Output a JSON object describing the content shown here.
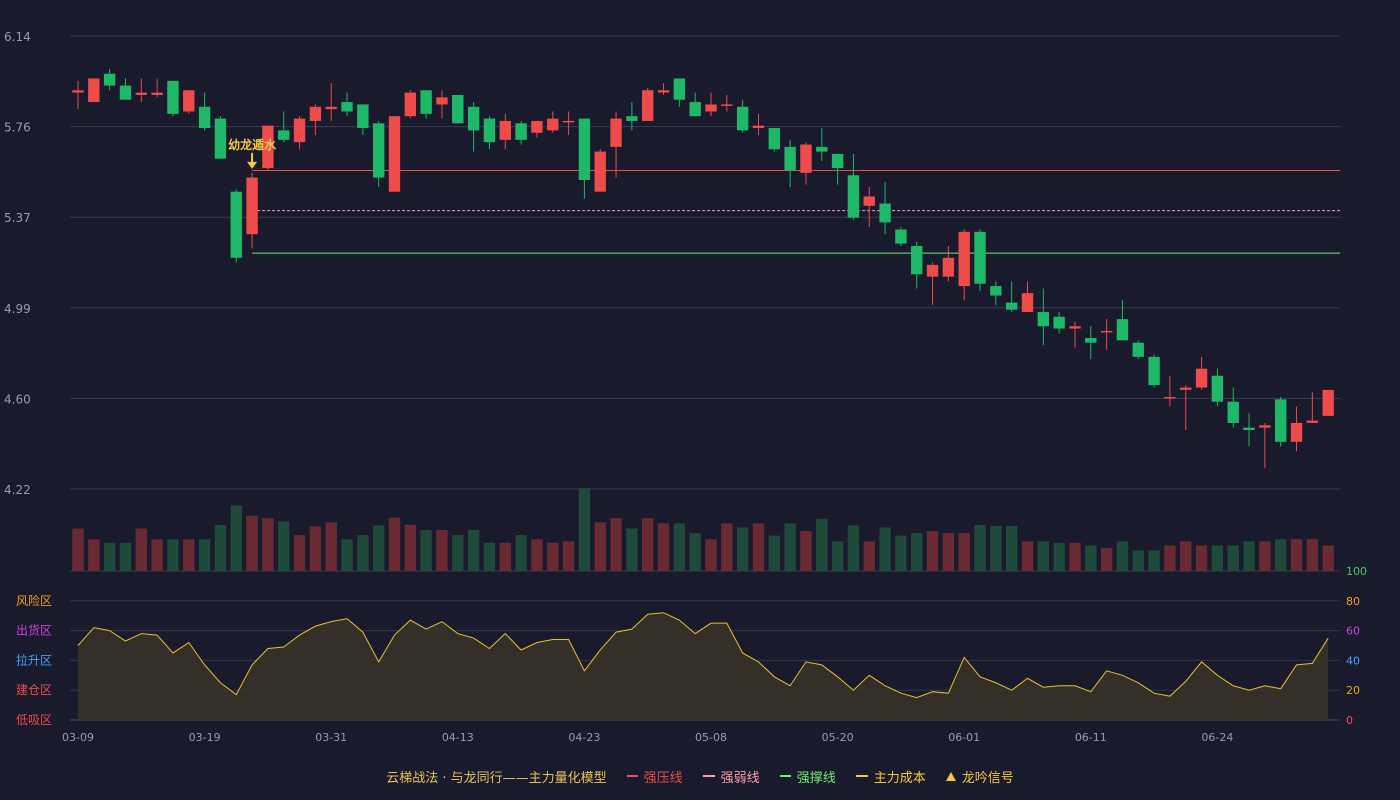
{
  "chart_data": {
    "type": "candlestick",
    "price_axis": {
      "ticks": [
        "6.14",
        "5.76",
        "5.37",
        "4.99",
        "4.60",
        "4.22"
      ],
      "range": [
        4.22,
        6.14
      ]
    },
    "x_labels": [
      "03-09",
      "03-19",
      "03-31",
      "04-13",
      "04-23",
      "05-08",
      "05-20",
      "06-01",
      "06-11",
      "06-24"
    ],
    "x_label_indices": [
      0,
      8,
      16,
      24,
      32,
      40,
      48,
      56,
      64,
      72
    ],
    "candles": [
      [
        5.9,
        5.91,
        5.83,
        5.95
      ],
      [
        5.86,
        5.96,
        5.87,
        5.96
      ],
      [
        5.98,
        5.93,
        5.91,
        6.0
      ],
      [
        5.93,
        5.87,
        5.87,
        5.96
      ],
      [
        5.89,
        5.9,
        5.86,
        5.96
      ],
      [
        5.89,
        5.9,
        5.88,
        5.96
      ],
      [
        5.95,
        5.81,
        5.8,
        5.95
      ],
      [
        5.82,
        5.91,
        5.81,
        5.91
      ],
      [
        5.84,
        5.75,
        5.74,
        5.9
      ],
      [
        5.79,
        5.62,
        5.62,
        5.8
      ],
      [
        5.48,
        5.2,
        5.18,
        5.49
      ],
      [
        5.3,
        5.54,
        5.24,
        5.56
      ],
      [
        5.58,
        5.76,
        5.57,
        5.76
      ],
      [
        5.74,
        5.7,
        5.69,
        5.82
      ],
      [
        5.69,
        5.79,
        5.66,
        5.8
      ],
      [
        5.78,
        5.84,
        5.72,
        5.85
      ],
      [
        5.83,
        5.84,
        5.78,
        5.94
      ],
      [
        5.86,
        5.82,
        5.8,
        5.9
      ],
      [
        5.85,
        5.75,
        5.72,
        5.85
      ],
      [
        5.77,
        5.54,
        5.5,
        5.78
      ],
      [
        5.48,
        5.8,
        5.48,
        5.8
      ],
      [
        5.8,
        5.9,
        5.79,
        5.91
      ],
      [
        5.91,
        5.81,
        5.79,
        5.91
      ],
      [
        5.85,
        5.88,
        5.79,
        5.91
      ],
      [
        5.89,
        5.77,
        5.77,
        5.89
      ],
      [
        5.84,
        5.74,
        5.65,
        5.86
      ],
      [
        5.79,
        5.69,
        5.66,
        5.8
      ],
      [
        5.7,
        5.78,
        5.66,
        5.81
      ],
      [
        5.77,
        5.7,
        5.68,
        5.78
      ],
      [
        5.73,
        5.78,
        5.71,
        5.78
      ],
      [
        5.74,
        5.79,
        5.73,
        5.82
      ],
      [
        5.78,
        5.78,
        5.72,
        5.82
      ],
      [
        5.79,
        5.53,
        5.45,
        5.79
      ],
      [
        5.48,
        5.65,
        5.48,
        5.66
      ],
      [
        5.67,
        5.79,
        5.54,
        5.82
      ],
      [
        5.8,
        5.78,
        5.74,
        5.86
      ],
      [
        5.78,
        5.91,
        5.78,
        5.92
      ],
      [
        5.9,
        5.91,
        5.89,
        5.94
      ],
      [
        5.96,
        5.87,
        5.84,
        5.96
      ],
      [
        5.86,
        5.8,
        5.8,
        5.9
      ],
      [
        5.82,
        5.85,
        5.8,
        5.9
      ],
      [
        5.85,
        5.85,
        5.82,
        5.89
      ],
      [
        5.84,
        5.74,
        5.73,
        5.87
      ],
      [
        5.75,
        5.76,
        5.72,
        5.81
      ],
      [
        5.75,
        5.66,
        5.65,
        5.75
      ],
      [
        5.67,
        5.57,
        5.5,
        5.7
      ],
      [
        5.56,
        5.68,
        5.51,
        5.69
      ],
      [
        5.67,
        5.65,
        5.61,
        5.75
      ],
      [
        5.64,
        5.58,
        5.51,
        5.64
      ],
      [
        5.55,
        5.37,
        5.36,
        5.64
      ],
      [
        5.42,
        5.46,
        5.33,
        5.5
      ],
      [
        5.43,
        5.35,
        5.3,
        5.52
      ],
      [
        5.32,
        5.26,
        5.25,
        5.33
      ],
      [
        5.25,
        5.13,
        5.07,
        5.27
      ],
      [
        5.12,
        5.17,
        5.0,
        5.18
      ],
      [
        5.12,
        5.2,
        5.1,
        5.25
      ],
      [
        5.08,
        5.31,
        5.02,
        5.32
      ],
      [
        5.31,
        5.09,
        5.06,
        5.32
      ],
      [
        5.08,
        5.04,
        5.0,
        5.1
      ],
      [
        5.01,
        4.98,
        4.97,
        5.1
      ],
      [
        4.97,
        5.05,
        4.97,
        5.1
      ],
      [
        4.97,
        4.91,
        4.83,
        5.07
      ],
      [
        4.95,
        4.9,
        4.88,
        4.97
      ],
      [
        4.9,
        4.91,
        4.82,
        4.93
      ],
      [
        4.86,
        4.84,
        4.77,
        4.91
      ],
      [
        4.89,
        4.89,
        4.81,
        4.94
      ],
      [
        4.94,
        4.85,
        4.85,
        5.02
      ],
      [
        4.84,
        4.78,
        4.77,
        4.85
      ],
      [
        4.78,
        4.66,
        4.65,
        4.79
      ],
      [
        4.61,
        4.61,
        4.57,
        4.7
      ],
      [
        4.64,
        4.65,
        4.47,
        4.66
      ],
      [
        4.65,
        4.73,
        4.64,
        4.78
      ],
      [
        4.7,
        4.59,
        4.57,
        4.73
      ],
      [
        4.59,
        4.5,
        4.48,
        4.65
      ],
      [
        4.48,
        4.47,
        4.4,
        4.54
      ],
      [
        4.48,
        4.49,
        4.31,
        4.5
      ],
      [
        4.6,
        4.42,
        4.4,
        4.61
      ],
      [
        4.42,
        4.5,
        4.38,
        4.57
      ],
      [
        4.5,
        4.51,
        4.5,
        4.63
      ],
      [
        4.53,
        4.64,
        4.53,
        4.64
      ]
    ],
    "volume": [
      83,
      62,
      55,
      55,
      83,
      62,
      62,
      62,
      62,
      90,
      128,
      108,
      103,
      97,
      70,
      87,
      95,
      62,
      70,
      89,
      104,
      90,
      80,
      80,
      70,
      80,
      55,
      55,
      70,
      62,
      55,
      58,
      162,
      95,
      103,
      83,
      103,
      93,
      93,
      74,
      62,
      93,
      85,
      93,
      69,
      93,
      78,
      102,
      58,
      89,
      58,
      85,
      69,
      74,
      78,
      74,
      74,
      90,
      88,
      88,
      58,
      58,
      55,
      55,
      50,
      45,
      58,
      40,
      40,
      50,
      58,
      50,
      50,
      50,
      58,
      58,
      62,
      62,
      62,
      50
    ],
    "lines": {
      "strong_resistance": 5.57,
      "strong_weak": 5.4,
      "strong_support": 5.22
    },
    "signal": {
      "index": 11,
      "label": "幼龙遁水"
    },
    "oscillator": {
      "zones": [
        "风险区",
        "出货区",
        "拉升区",
        "建仓区",
        "低吸区"
      ],
      "ticks": [
        "100",
        "80",
        "60",
        "40",
        "20",
        "0"
      ],
      "range": [
        0,
        100
      ],
      "values": [
        50,
        62,
        60,
        53,
        58,
        57,
        45,
        52,
        37,
        25,
        17,
        37,
        48,
        49,
        57,
        63,
        66,
        68,
        59,
        39,
        57,
        67,
        61,
        66,
        58,
        55,
        48,
        58,
        47,
        52,
        54,
        54,
        33,
        47,
        59,
        61,
        71,
        72,
        67,
        58,
        65,
        65,
        45,
        39,
        29,
        23,
        39,
        37,
        29,
        20,
        30,
        23,
        18,
        15,
        19,
        18,
        42,
        29,
        25,
        20,
        28,
        22,
        23,
        23,
        19,
        33,
        30,
        25,
        18,
        16,
        26,
        39,
        30,
        23,
        20,
        23,
        21,
        37,
        38,
        55
      ]
    }
  },
  "legend": {
    "title": "云梯战法 · 与龙同行——主力量化模型",
    "items": [
      {
        "label": "强压线",
        "color": "#ee4b4b",
        "style": "solid"
      },
      {
        "label": "强弱线",
        "color": "#ff9db0",
        "style": "dashed"
      },
      {
        "label": "强撑线",
        "color": "#6cf06c",
        "style": "solid"
      },
      {
        "label": "主力成本",
        "color": "#f5c842",
        "style": "dashed"
      },
      {
        "label": "龙吟信号",
        "color": "#f5c842",
        "style": "triangle"
      }
    ]
  },
  "colors": {
    "background": "#191a2c",
    "up": "#ee4b4b",
    "down": "#1fb768",
    "up_volume": "#6a2a34",
    "down_volume": "#1e4a3a",
    "oscillator_line": "#e6c230",
    "oscillator_fill": "#3a3428",
    "zone_colors": [
      "#f0a020",
      "#d040e0",
      "#4aa0ff",
      "#ee4b4b",
      "#ee4b4b"
    ],
    "tick_colors": [
      "#3fcf5a",
      "#f0a020",
      "#d040e0",
      "#4aa0ff",
      "#f0a020",
      "#ee4b4b"
    ]
  }
}
